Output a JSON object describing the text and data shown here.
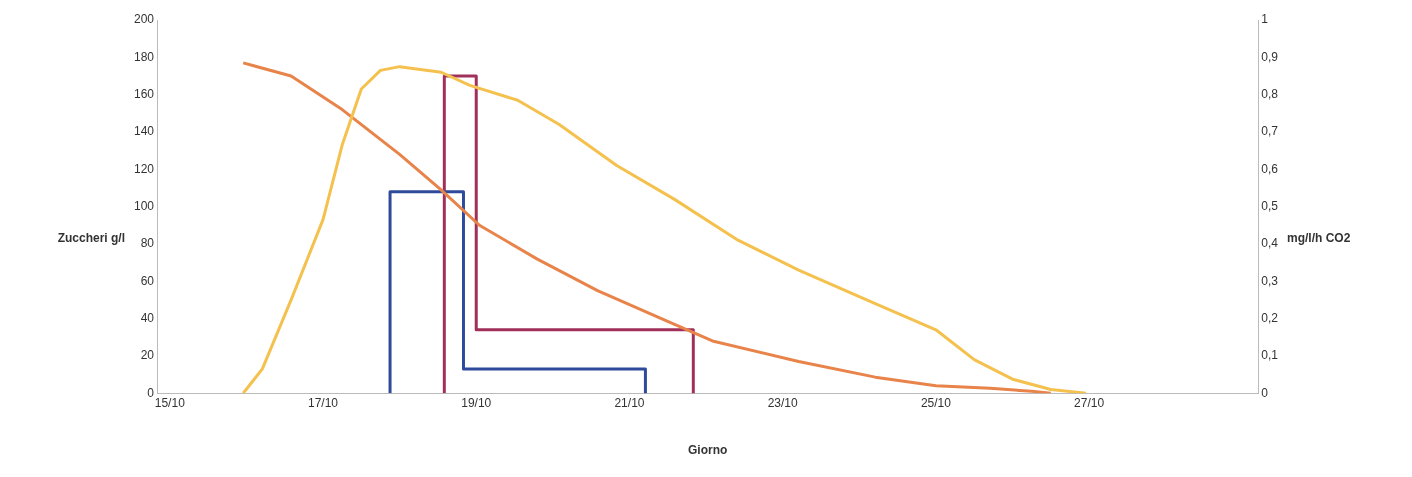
{
  "chart_data": {
    "type": "line",
    "xlabel": "Giorno",
    "ylabel": "Zuccheri g/l",
    "y2label": "mg/l/h CO2",
    "xlim": [
      "--10-14T20:00",
      "--10-29T05:00"
    ],
    "xticks": [
      {
        "value": "--10-15",
        "label": "15/10"
      },
      {
        "value": "--10-17",
        "label": "17/10"
      },
      {
        "value": "--10-19",
        "label": "19/10"
      },
      {
        "value": "--10-21",
        "label": "21/10"
      },
      {
        "value": "--10-23",
        "label": "23/10"
      },
      {
        "value": "--10-25",
        "label": "25/10"
      },
      {
        "value": "--10-27",
        "label": "27/10"
      }
    ],
    "ylim": [
      0,
      200
    ],
    "yticks": [
      0,
      20,
      40,
      60,
      80,
      100,
      120,
      140,
      160,
      180,
      200
    ],
    "y2lim": [
      0,
      1
    ],
    "y2ticks": [
      0,
      {
        "value": 0.1,
        "label": "0,1"
      },
      {
        "value": 0.2,
        "label": "0,2"
      },
      {
        "value": 0.3,
        "label": "0,3"
      },
      {
        "value": 0.4,
        "label": "0,4"
      },
      {
        "value": 0.5,
        "label": "0,5"
      },
      {
        "value": 0.6,
        "label": "0,6"
      },
      {
        "value": 0.7,
        "label": "0,7"
      },
      {
        "value": 0.8,
        "label": "0,8"
      },
      {
        "value": 0.9,
        "label": "0,9"
      },
      1
    ],
    "grid": false,
    "legend": false,
    "marker": "none",
    "series": [
      {
        "color": "#f5c14e",
        "x": [
          "--10-15T23:00",
          "--10-16T05:00",
          "--10-16T14:00",
          "--10-17",
          "--10-17T06:00",
          "--10-17T12:00",
          "--10-17T18:00",
          "--10-18",
          "--10-18T13:00",
          "--10-18T22:00",
          "--10-19T13:00",
          "--10-20T02:00",
          "--10-20T20:00",
          "--10-21T14:00",
          "--10-22T10:00",
          "--10-23T05:00",
          "--10-24T05:00",
          "--10-25",
          "--10-25T12:00",
          "--10-26",
          "--10-26T12:00",
          "--10-26T23:00"
        ],
        "values": [
          0,
          13,
          50,
          93,
          133,
          163,
          173,
          175,
          172,
          165,
          157,
          144,
          122,
          104,
          82,
          66,
          48,
          34,
          18,
          7.5,
          2,
          0
        ]
      },
      {
        "color": "#e8834a",
        "x": [
          "--10-15T23:00",
          "--10-16T14:00",
          "--10-17T06:00",
          "--10-18",
          "--10-18T13:00",
          "--10-19T01:00",
          "--10-19T19:00",
          "--10-20T14:00",
          "--10-21T10:00",
          "--10-22T02:00",
          "--10-23T05:00",
          "--10-24T05:00",
          "--10-25",
          "--10-25T17:00",
          "--10-26T06:00",
          "--10-26T12:00"
        ],
        "values": [
          177,
          170,
          152,
          128,
          109,
          90,
          72,
          55,
          40,
          28,
          17,
          8.6,
          4,
          2.7,
          1,
          0
        ]
      },
      {
        "axis": "y2",
        "color": "#2e4a9a",
        "x": [
          "--10-17T21:00",
          "--10-17T21:00",
          "--10-18T20:00",
          "--10-18T20:00",
          "--10-21T05:00",
          "--10-21T05:00"
        ],
        "values": [
          0,
          0.54,
          0.54,
          0.065,
          0.065,
          0
        ]
      },
      {
        "axis": "y2",
        "color": "#a0305a",
        "x": [
          "--10-18T14:00",
          "--10-18T14:00",
          "--10-19T00:00",
          "--10-19T00:00",
          "--10-21T20:00",
          "--10-21T20:00"
        ],
        "values": [
          0,
          0.85,
          0.85,
          0.17,
          0.17,
          0
        ]
      }
    ]
  }
}
